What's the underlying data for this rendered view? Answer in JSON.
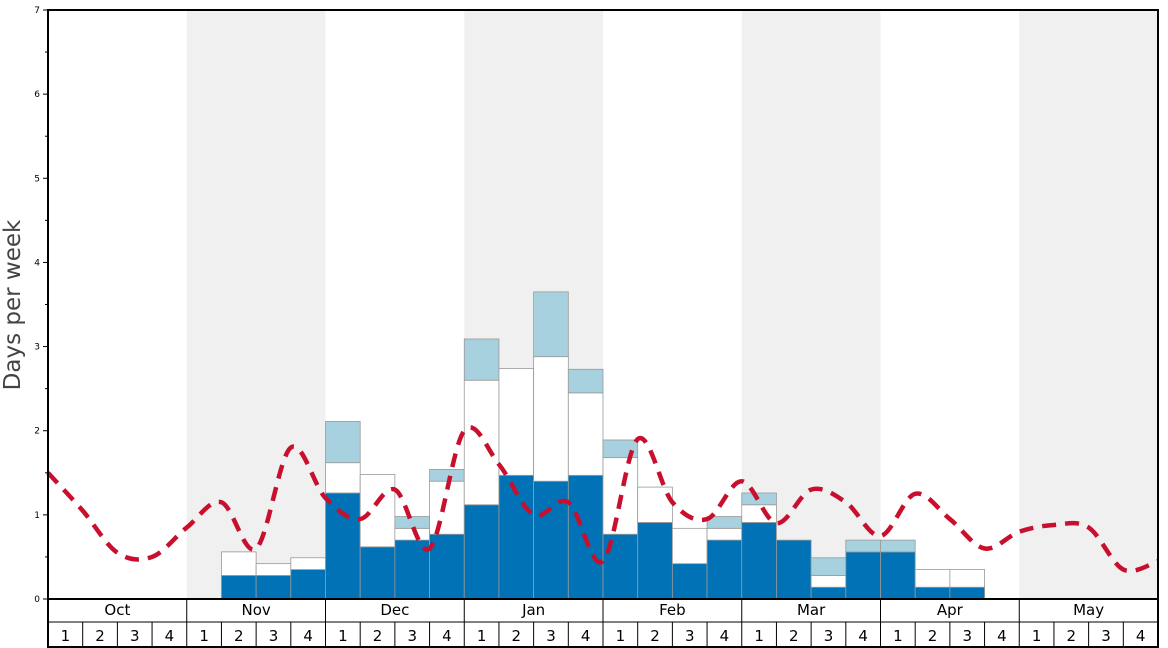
{
  "chart_data": {
    "type": "bar",
    "subtype": "stacked-bar-with-line",
    "ylabel": "Days per week",
    "xlabel": "",
    "title": "",
    "ylim": [
      0,
      7
    ],
    "y_ticks": [
      0,
      1,
      2,
      3,
      4,
      5,
      6,
      7
    ],
    "months": [
      "Oct",
      "Nov",
      "Dec",
      "Jan",
      "Feb",
      "Mar",
      "Apr",
      "May"
    ],
    "weeks_per_month": [
      "1",
      "2",
      "3",
      "4"
    ],
    "shaded_months": [
      "Nov",
      "Jan",
      "Mar",
      "May"
    ],
    "colors": {
      "series_1": "#0072b5",
      "series_2": "#ffffff",
      "series_3": "#a8d1df",
      "line": "#c8102e",
      "shade": "#f0f0f0",
      "bar_edge": "#999999"
    },
    "series": [
      {
        "values": [
          0,
          0,
          0,
          0,
          0,
          0.28,
          0.28,
          0.35,
          1.26,
          0.62,
          0.7,
          0.77,
          1.12,
          1.47,
          1.4,
          1.47,
          0.77,
          0.91,
          0.42,
          0.7,
          0.91,
          0.7,
          0.14,
          0.56,
          0.56,
          0.14,
          0.14,
          0,
          0,
          0,
          0,
          0
        ]
      },
      {
        "values": [
          0,
          0,
          0,
          0,
          0,
          0.28,
          0.14,
          0.14,
          0.36,
          0.86,
          0.14,
          0.63,
          1.48,
          1.27,
          1.48,
          0.98,
          0.91,
          0.42,
          0.42,
          0.14,
          0.21,
          0,
          0.14,
          0,
          0,
          0.21,
          0.21,
          0,
          0,
          0,
          0,
          0
        ]
      },
      {
        "values": [
          0,
          0,
          0,
          0,
          0,
          0,
          0,
          0,
          0.49,
          0,
          0.14,
          0.14,
          0.49,
          0,
          0.77,
          0.28,
          0.21,
          0,
          0,
          0.14,
          0.14,
          0,
          0.21,
          0.14,
          0.14,
          0,
          0,
          0,
          0,
          0,
          0,
          0
        ]
      }
    ],
    "line_series": {
      "style": "dashed",
      "values": [
        1.5,
        1.05,
        0.55,
        0.5,
        0.85,
        1.15,
        0.6,
        1.8,
        1.2,
        0.95,
        1.3,
        0.6,
        2.0,
        1.6,
        1.0,
        1.15,
        0.45,
        1.9,
        1.15,
        0.95,
        1.4,
        0.9,
        1.3,
        1.15,
        0.75,
        1.25,
        0.95,
        0.6,
        0.8,
        0.88,
        0.85,
        0.35,
        0.45
      ]
    }
  }
}
